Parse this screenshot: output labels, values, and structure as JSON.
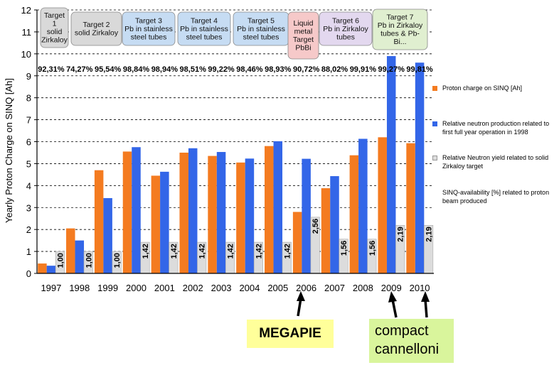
{
  "chart_data": {
    "type": "bar",
    "ylabel": "Yearly Proton Charge on SINQ [Ah]",
    "ylim": [
      0,
      12
    ],
    "yticks": [
      0,
      1,
      2,
      3,
      4,
      5,
      6,
      7,
      8,
      9,
      10,
      11,
      12
    ],
    "categories": [
      "1997",
      "1998",
      "1999",
      "2000",
      "2001",
      "2002",
      "2003",
      "2004",
      "2005",
      "2006",
      "2007",
      "2008",
      "2009",
      "2010"
    ],
    "series": [
      {
        "name": "Proton charge on SINQ  [Ah]",
        "color": "#f47b20",
        "values": [
          0.45,
          2.05,
          4.7,
          5.55,
          4.45,
          5.5,
          5.35,
          5.05,
          5.8,
          2.8,
          3.88,
          5.38,
          6.2,
          5.93
        ]
      },
      {
        "name": "Relative  neutron production related to first full year operation in 1998",
        "color": "#3366e8",
        "values": [
          0.35,
          1.5,
          3.43,
          5.75,
          4.63,
          5.7,
          5.53,
          5.23,
          6.02,
          5.22,
          4.43,
          6.13,
          9.9,
          9.6
        ]
      },
      {
        "name": "Relative Neutron yield related to solid Zirkaloy target",
        "color": "#dcdcdc",
        "values": [
          1.0,
          1.0,
          1.0,
          1.42,
          1.42,
          1.42,
          1.42,
          1.42,
          1.42,
          2.56,
          1.56,
          1.56,
          2.19,
          2.19
        ],
        "labels": [
          "1,00",
          "1,00",
          "1,00",
          "1,42",
          "1,42",
          "1,42",
          "1,42",
          "1,42",
          "1,42",
          "2,56",
          "1,56",
          "1,56",
          "2,19",
          "2,19"
        ]
      }
    ],
    "availability_label": "SINQ-availability [%] related to proton beam produced",
    "availability": [
      "92,31%",
      "74,27%",
      "95,54%",
      "98,84%",
      "98,94%",
      "98,51%",
      "99,22%",
      "98,46%",
      "98,93%",
      "90,72%",
      "88,02%",
      "99,91%",
      "99,27%",
      "99,81%"
    ],
    "grid": true,
    "legend_position": "right"
  },
  "targets": [
    {
      "lines": [
        "Target",
        "1",
        "solid",
        "Zirkaloy"
      ],
      "color": "#d9d9d9"
    },
    {
      "lines": [
        "Target 2",
        "solid Zirkaloy"
      ],
      "color": "#d9d9d9"
    },
    {
      "lines": [
        "Target 3",
        "Pb in stainless",
        "steel tubes"
      ],
      "color": "#c6dcf3"
    },
    {
      "lines": [
        "Target 4",
        "Pb in stainless",
        "steel tubes"
      ],
      "color": "#c6dcf3"
    },
    {
      "lines": [
        "Target 5",
        "Pb in stainless",
        "steel tubes"
      ],
      "color": "#c6dcf3"
    },
    {
      "lines": [
        "Liquid",
        "metal",
        "Target",
        "PbBi"
      ],
      "color": "#f6c9c9"
    },
    {
      "lines": [
        "Target 6",
        "Pb in Zirkaloy",
        "tubes"
      ],
      "color": "#e3d8ef"
    },
    {
      "lines": [
        "Target 7",
        "Pb in Zirkaloy",
        "tubes & Pb-",
        "Bi..."
      ],
      "color": "#e0efd0"
    }
  ],
  "annotations": {
    "megapie": "MEGAPIE",
    "compact": "compact",
    "cannelloni": "cannelloni"
  }
}
